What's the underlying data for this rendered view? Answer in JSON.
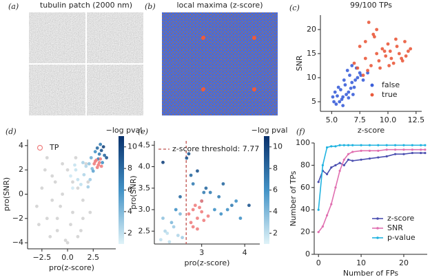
{
  "chart_data": [
    {
      "type": "image",
      "label": "(a)",
      "title": "tubulin patch (2000 nm)"
    },
    {
      "type": "image",
      "label": "(b)",
      "title": "local maxima (z-score)"
    },
    {
      "type": "scatter",
      "label": "(c)",
      "title": "99/100 TPs",
      "x_label": "z-score",
      "y_label": "SNR",
      "xlim": [
        4,
        13
      ],
      "xticks": [
        {
          "value": 5,
          "label": "5.0"
        },
        7.5,
        {
          "value": 10,
          "label": "10.0"
        },
        12.5
      ],
      "ylim": [
        3,
        23
      ],
      "yticks": [
        5,
        10,
        15,
        20
      ],
      "legend": "lower right",
      "series": [
        {
          "name": "false",
          "color": "#3b5fd9",
          "x": [
            5.2,
            5.5,
            5.8,
            6.0,
            6.2,
            6.5,
            6.8,
            7.0,
            7.3,
            5.4,
            5.9,
            6.3,
            6.7,
            7.1,
            7.5,
            5.6,
            6.1,
            6.6,
            6.9,
            5.3,
            5.7,
            6.4,
            7.2,
            7.8,
            8.2,
            6.0,
            6.5,
            5.1,
            6.8,
            7.6
          ],
          "y": [
            5.0,
            6.2,
            7.5,
            6.0,
            8.5,
            7.0,
            9.0,
            8.0,
            10.0,
            4.5,
            5.5,
            6.5,
            7.8,
            9.5,
            11.0,
            8.0,
            9.5,
            10.5,
            6.5,
            7.0,
            5.0,
            11.5,
            12.0,
            9.5,
            11.0,
            4.2,
            5.8,
            6.0,
            12.5,
            10.5
          ]
        },
        {
          "name": "true",
          "color": "#ea5a3c",
          "x": [
            7.0,
            7.5,
            8.0,
            8.3,
            8.5,
            8.8,
            9.0,
            9.2,
            9.5,
            9.8,
            10.0,
            10.2,
            10.5,
            10.8,
            11.0,
            11.2,
            11.5,
            11.8,
            12.0,
            8.2,
            8.7,
            9.3,
            9.7,
            10.3,
            10.7,
            11.3,
            7.8,
            8.0,
            9.0,
            10.1,
            11.6,
            7.3
          ],
          "y": [
            13.0,
            16.5,
            14.0,
            21.5,
            12.5,
            18.5,
            15.0,
            13.5,
            16.0,
            14.5,
            17.0,
            15.5,
            13.0,
            16.5,
            15.0,
            14.0,
            17.5,
            15.5,
            16.0,
            11.5,
            19.0,
            12.0,
            15.5,
            14.0,
            18.0,
            13.5,
            10.5,
            17.5,
            20.0,
            12.5,
            14.5,
            12.0
          ]
        }
      ]
    },
    {
      "type": "scatter",
      "label": "(d)",
      "x_label": "pro(z-score)",
      "y_label": "pro(SNR)",
      "xlim": [
        -3.9,
        4.7
      ],
      "xticks": [
        {
          "value": -2.5,
          "label": "−2.5"
        },
        {
          "value": 0,
          "label": "0.0"
        },
        2.5
      ],
      "ylim": [
        -4.5,
        4.5
      ],
      "yticks": [
        {
          "value": -4,
          "label": "−4"
        },
        {
          "value": -2,
          "label": "−2"
        },
        0,
        2,
        4
      ],
      "colorbar_label": "−log pval",
      "clim": [
        1,
        11
      ],
      "cticks": [
        2,
        4,
        6,
        8,
        10
      ],
      "legend": "upper left",
      "series": [
        {
          "color": "#d3d3d3",
          "x": [
            -3,
            -2.5,
            -2,
            -1.5,
            -1,
            -0.5,
            0,
            0.5,
            1,
            1.5,
            2,
            -2.8,
            -2.2,
            -1.7,
            -1.2,
            -0.7,
            -0.2,
            0.3,
            0.8,
            1.3,
            1.8,
            2.2,
            -1.5,
            -0.5,
            0.5,
            1.5,
            -2,
            0,
            1,
            -1
          ],
          "y": [
            -1,
            0.5,
            -2,
            1.5,
            -3,
            0,
            2,
            -1.5,
            0.5,
            -0.5,
            1,
            -2.5,
            2,
            -3.5,
            1,
            -1,
            -3.8,
            -2.5,
            3,
            -3,
            2.5,
            -1.5,
            -0.5,
            2.5,
            1,
            -2,
            3,
            -4,
            -3.5,
            -2
          ]
        },
        {
          "x": [
            0.3,
            0.8,
            1.3,
            1.8,
            2.2,
            0.5,
            1.0,
            1.5,
            2.0,
            2.4,
            0.7,
            1.6,
            2.1,
            2.5,
            2.3,
            2.7,
            2.9,
            3.1,
            3.3,
            3.5,
            3.6,
            3.8,
            3.2,
            3.4,
            3.0
          ],
          "y": [
            1.5,
            2.0,
            0.8,
            2.3,
            1.2,
            0.5,
            1.2,
            2.6,
            0.6,
            2.1,
            2.4,
            1.6,
            2.5,
            1.9,
            3.0,
            3.5,
            3.8,
            3.3,
            3.6,
            3.9,
            3.2,
            3.0,
            4.1,
            2.6,
            2.9
          ],
          "c": [
            1.5,
            1.8,
            2,
            2.5,
            3,
            1.5,
            2,
            2.8,
            3,
            4,
            1.8,
            2.5,
            3.5,
            5,
            4.5,
            6,
            8,
            7,
            9,
            10,
            8,
            9,
            7,
            6,
            7
          ]
        },
        {
          "name": "TP",
          "color": "#f08080",
          "x": [
            2.6,
            2.8,
            3.0,
            3.2,
            2.9,
            3.1,
            3.3,
            2.7
          ],
          "y": [
            2.5,
            2.8,
            2.4,
            2.9,
            2.2,
            2.6,
            2.3,
            2.7
          ]
        }
      ]
    },
    {
      "type": "scatter",
      "label": "(e)",
      "x_label": "pro(z-score)",
      "y_label": "pro(SNR)",
      "xlim": [
        1.9,
        4.35
      ],
      "xticks": [
        3,
        4
      ],
      "ylim": [
        2.2,
        4.6
      ],
      "yticks": [
        2.5,
        {
          "value": 3,
          "label": "3.0"
        },
        3.5,
        {
          "value": 4,
          "label": "4.0"
        },
        4.5
      ],
      "colorbar_label": "−log pval",
      "clim": [
        1,
        11
      ],
      "cticks": [
        2,
        4,
        6,
        8,
        10
      ],
      "threshold_x": 2.64,
      "annotation": "z-score threshold: 7.77",
      "series": [
        {
          "x": [
            2.05,
            2.15,
            2.25,
            2.35,
            2.45,
            2.55,
            2.1,
            2.3,
            2.5,
            2.2,
            2.5,
            2.7,
            2.8,
            2.9,
            3.0,
            3.1,
            3.2,
            3.3,
            3.4,
            3.5,
            3.6,
            3.7,
            3.8,
            4.1,
            2.4,
            2.65,
            3.05,
            3.45,
            3.9,
            2.75,
            2.1
          ],
          "y": [
            2.3,
            2.5,
            2.25,
            2.6,
            2.4,
            2.35,
            2.8,
            2.7,
            2.9,
            2.45,
            3.3,
            4.3,
            3.6,
            3.9,
            3.2,
            3.5,
            3.4,
            3.0,
            3.3,
            3.6,
            3.0,
            3.1,
            3.2,
            3.1,
            3.0,
            4.2,
            3.4,
            2.9,
            2.8,
            3.8,
            4.1
          ],
          "c": [
            2,
            2.5,
            2,
            3,
            2.5,
            3,
            3.5,
            4,
            4,
            2,
            8,
            9,
            7,
            9,
            8,
            8,
            7,
            6,
            7,
            8,
            6,
            7,
            6,
            9,
            6,
            9,
            7,
            6,
            6,
            8,
            10
          ]
        },
        {
          "color": "#f08080",
          "x": [
            2.7,
            2.8,
            2.9,
            3.0,
            2.75,
            2.85,
            2.95,
            3.05,
            3.15,
            2.8,
            2.9,
            3.0
          ],
          "y": [
            2.9,
            3.0,
            2.8,
            2.95,
            2.7,
            3.1,
            3.05,
            2.75,
            2.85,
            2.6,
            2.55,
            3.2
          ]
        }
      ]
    },
    {
      "type": "line",
      "label": "(f)",
      "x_label": "Number of FPs",
      "y_label": "Number of TPs",
      "xlim": [
        -1,
        25.5
      ],
      "xticks": [
        0,
        10,
        20
      ],
      "ylim": [
        0,
        100
      ],
      "yticks": [
        0,
        20,
        40,
        60,
        80,
        100
      ],
      "legend": "lower right",
      "x": [
        0,
        1,
        2,
        3,
        4,
        5,
        6,
        7,
        8,
        10,
        12,
        14,
        16,
        18,
        20,
        22,
        24,
        25
      ],
      "series": [
        {
          "name": "z-score",
          "color": "#4b4fb0",
          "values": [
            65,
            75,
            72,
            78,
            80,
            82,
            80,
            85,
            84,
            85,
            86,
            87,
            88,
            90,
            90,
            91,
            91,
            91
          ]
        },
        {
          "name": "SNR",
          "color": "#e06fb0",
          "values": [
            20,
            25,
            35,
            45,
            60,
            75,
            85,
            90,
            92,
            93,
            93,
            93,
            94,
            94,
            94,
            94,
            94,
            94
          ]
        },
        {
          "name": "p-value",
          "color": "#1fb3e0",
          "values": [
            40,
            80,
            96,
            97,
            97,
            98,
            98,
            98,
            98,
            98,
            98,
            98,
            98,
            98,
            98,
            98,
            98,
            98
          ]
        }
      ]
    }
  ]
}
